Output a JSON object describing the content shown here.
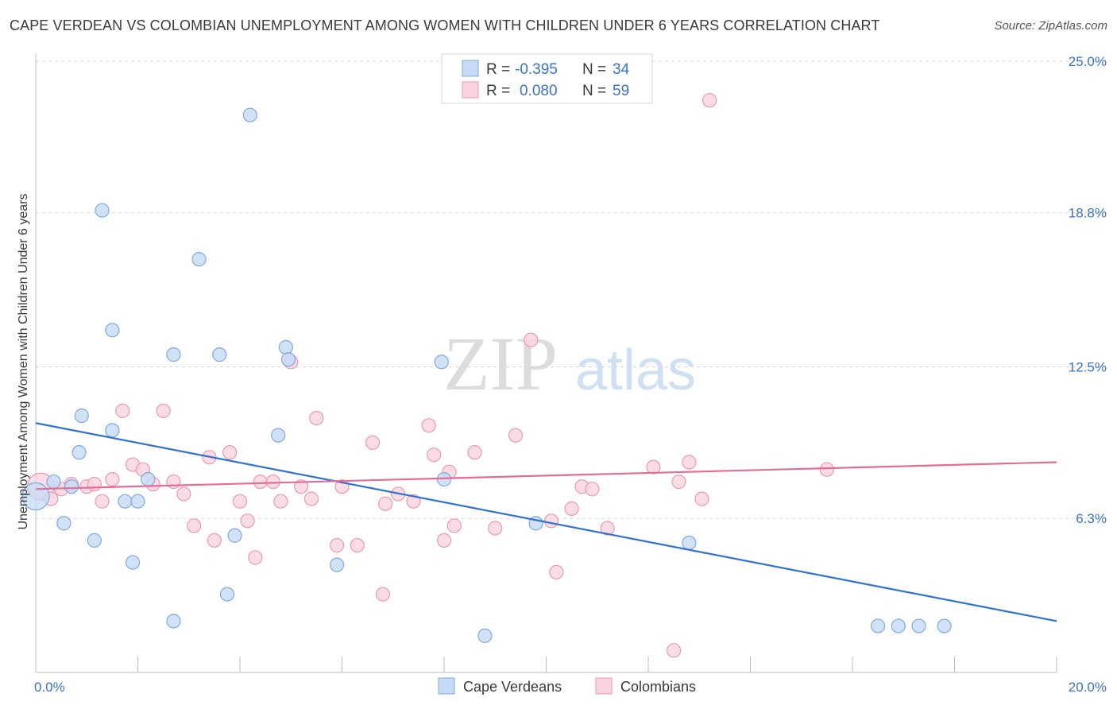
{
  "title": "CAPE VERDEAN VS COLOMBIAN UNEMPLOYMENT AMONG WOMEN WITH CHILDREN UNDER 6 YEARS CORRELATION CHART",
  "source": "Source: ZipAtlas.com",
  "watermark": {
    "zip": "ZIP",
    "atlas": "atlas"
  },
  "legend": {
    "r_label": "R =",
    "n_label": "N =",
    "rows": [
      {
        "r": "-0.395",
        "n": "34",
        "color": "#a9c8f0"
      },
      {
        "r": "0.080",
        "n": "59",
        "color": "#f7bfd0"
      }
    ]
  },
  "colors": {
    "blue_fill": "#c5dbf5",
    "blue_stroke": "#7fa9dd",
    "blue_line": "#2f72d0",
    "pink_fill": "#f9d3df",
    "pink_stroke": "#e89ab3",
    "pink_line": "#e36d97",
    "grid": "#d7d7d7",
    "tick_text": "#3b73c4"
  },
  "chart_data": {
    "type": "scatter",
    "title": "CAPE VERDEAN VS COLOMBIAN UNEMPLOYMENT AMONG WOMEN WITH CHILDREN UNDER 6 YEARS CORRELATION CHART",
    "xlabel": "",
    "ylabel": "Unemployment Among Women with Children Under 6 years",
    "xlim": [
      0,
      20
    ],
    "ylim": [
      0,
      25
    ],
    "x_ticks": [
      "0.0%",
      "20.0%"
    ],
    "y_ticks": [
      "6.3%",
      "12.5%",
      "18.8%",
      "25.0%"
    ],
    "y_tick_values": [
      6.3,
      12.5,
      18.8,
      25.0
    ],
    "grid": true,
    "legend_position": "bottom-center",
    "series": [
      {
        "name": "Cape Verdeans",
        "r": -0.395,
        "n": 34,
        "trend": {
          "x0": 0,
          "y0": 10.2,
          "x1": 20,
          "y1": 2.1
        },
        "points": [
          [
            0.0,
            7.2
          ],
          [
            0.35,
            7.8
          ],
          [
            0.7,
            7.6
          ],
          [
            0.55,
            6.1
          ],
          [
            0.85,
            9.0
          ],
          [
            0.9,
            10.5
          ],
          [
            1.15,
            5.4
          ],
          [
            1.3,
            18.9
          ],
          [
            1.5,
            14.0
          ],
          [
            1.5,
            9.9
          ],
          [
            1.75,
            7.0
          ],
          [
            1.9,
            4.5
          ],
          [
            2.0,
            7.0
          ],
          [
            2.2,
            7.9
          ],
          [
            2.7,
            13.0
          ],
          [
            2.7,
            2.1
          ],
          [
            3.2,
            16.9
          ],
          [
            3.6,
            13.0
          ],
          [
            3.75,
            3.2
          ],
          [
            3.9,
            5.6
          ],
          [
            4.2,
            22.8
          ],
          [
            4.75,
            9.7
          ],
          [
            4.9,
            13.3
          ],
          [
            4.95,
            12.8
          ],
          [
            5.9,
            4.4
          ],
          [
            7.95,
            12.7
          ],
          [
            8.0,
            7.9
          ],
          [
            8.8,
            1.5
          ],
          [
            9.8,
            6.1
          ],
          [
            12.8,
            5.3
          ],
          [
            16.5,
            1.9
          ],
          [
            16.9,
            1.9
          ],
          [
            17.3,
            1.9
          ],
          [
            17.8,
            1.9
          ]
        ]
      },
      {
        "name": "Colombians",
        "r": 0.08,
        "n": 59,
        "trend": {
          "x0": 0,
          "y0": 7.5,
          "x1": 20,
          "y1": 8.6
        },
        "points": [
          [
            0.1,
            7.6
          ],
          [
            0.3,
            7.1
          ],
          [
            0.5,
            7.5
          ],
          [
            0.7,
            7.7
          ],
          [
            1.0,
            7.6
          ],
          [
            1.15,
            7.7
          ],
          [
            1.3,
            7.0
          ],
          [
            1.5,
            7.9
          ],
          [
            1.7,
            10.7
          ],
          [
            1.9,
            8.5
          ],
          [
            2.1,
            8.3
          ],
          [
            2.3,
            7.7
          ],
          [
            2.5,
            10.7
          ],
          [
            2.7,
            7.8
          ],
          [
            2.9,
            7.3
          ],
          [
            3.1,
            6.0
          ],
          [
            3.4,
            8.8
          ],
          [
            3.5,
            5.4
          ],
          [
            3.8,
            9.0
          ],
          [
            4.0,
            7.0
          ],
          [
            4.15,
            6.2
          ],
          [
            4.3,
            4.7
          ],
          [
            4.4,
            7.8
          ],
          [
            4.65,
            7.8
          ],
          [
            4.8,
            7.0
          ],
          [
            5.0,
            12.7
          ],
          [
            5.2,
            7.6
          ],
          [
            5.4,
            7.1
          ],
          [
            5.5,
            10.4
          ],
          [
            5.9,
            5.2
          ],
          [
            6.0,
            7.6
          ],
          [
            6.3,
            5.2
          ],
          [
            6.6,
            9.4
          ],
          [
            6.8,
            3.2
          ],
          [
            6.85,
            6.9
          ],
          [
            7.1,
            7.3
          ],
          [
            7.4,
            7.0
          ],
          [
            7.7,
            10.1
          ],
          [
            7.8,
            8.9
          ],
          [
            8.0,
            5.4
          ],
          [
            8.1,
            8.2
          ],
          [
            8.2,
            6.0
          ],
          [
            8.6,
            9.0
          ],
          [
            9.0,
            5.9
          ],
          [
            9.4,
            9.7
          ],
          [
            9.7,
            13.6
          ],
          [
            10.1,
            6.2
          ],
          [
            10.2,
            4.1
          ],
          [
            10.5,
            6.7
          ],
          [
            10.7,
            7.6
          ],
          [
            10.9,
            7.5
          ],
          [
            11.2,
            5.9
          ],
          [
            12.1,
            8.4
          ],
          [
            12.5,
            0.9
          ],
          [
            12.6,
            7.8
          ],
          [
            12.8,
            8.6
          ],
          [
            13.05,
            7.1
          ],
          [
            13.2,
            23.4
          ],
          [
            15.5,
            8.3
          ]
        ]
      }
    ]
  }
}
